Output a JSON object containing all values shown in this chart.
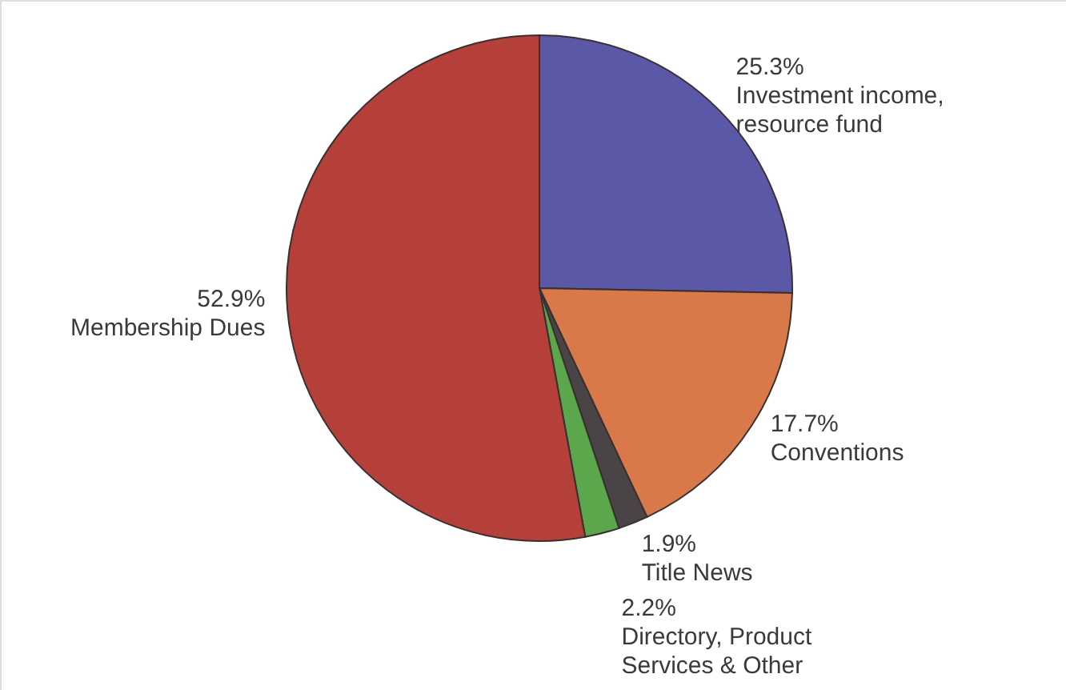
{
  "chart_data": {
    "type": "pie",
    "categories": [
      "Investment income, resource fund",
      "Conventions",
      "Title News",
      "Directory, Product Services & Other",
      "Membership Dues"
    ],
    "values": [
      25.3,
      17.7,
      1.9,
      2.2,
      52.9
    ],
    "value_labels": [
      "25.3%",
      "17.7%",
      "1.9%",
      "2.2%",
      "52.9%"
    ],
    "colors": [
      "#5b58a8",
      "#d9794a",
      "#4a4446",
      "#5ca64c",
      "#b5403a"
    ]
  }
}
